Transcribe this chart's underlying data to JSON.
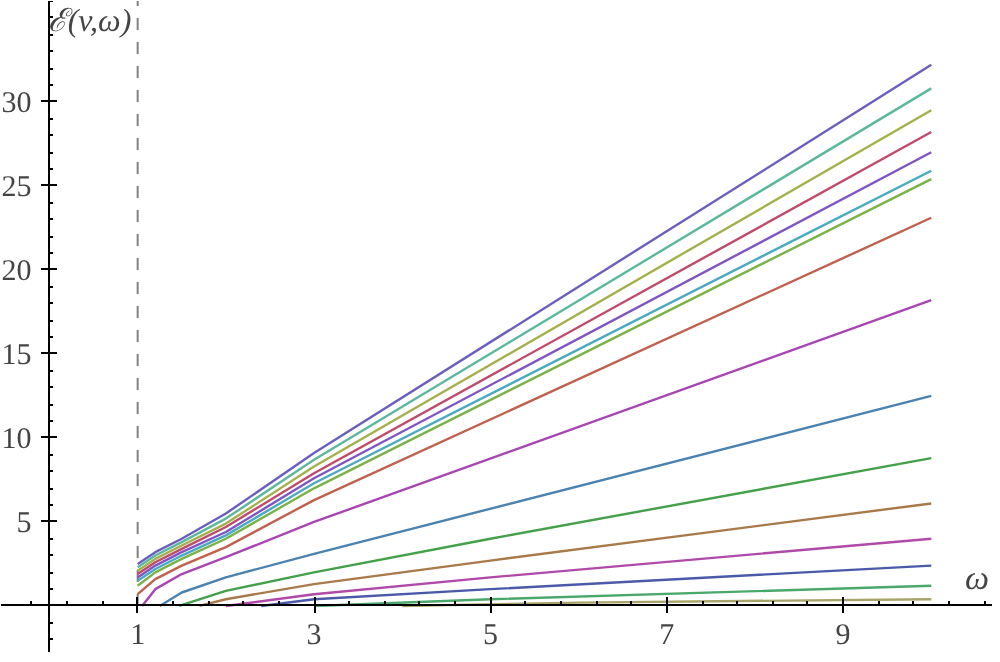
{
  "chart_data": {
    "type": "line",
    "xlabel": "ω",
    "ylabel": "ℰ(v,ω)",
    "xlim": [
      -0.55,
      10.7
    ],
    "ylim": [
      -2.8,
      36
    ],
    "xticks": [
      1,
      3,
      5,
      7,
      9
    ],
    "yticks": [
      5,
      10,
      15,
      20,
      25,
      30
    ],
    "grid": false,
    "marker": "none",
    "line_style": "solid",
    "ref_lines": [
      {
        "axis": "x",
        "value": 1,
        "color": "#808080",
        "line_style": "dashed"
      }
    ],
    "series": [
      {
        "color": "#6a5fbf",
        "x": [
          1,
          1.2,
          1.5,
          2,
          3,
          10
        ],
        "values": [
          2.5,
          3.2,
          4.0,
          5.5,
          9.1,
          32.2
        ]
      },
      {
        "color": "#5cb89c",
        "x": [
          1,
          1.2,
          1.5,
          2,
          3,
          10
        ],
        "values": [
          2.3,
          3.0,
          3.8,
          5.2,
          8.7,
          30.8
        ]
      },
      {
        "color": "#a3b04c",
        "x": [
          1,
          1.2,
          1.5,
          2,
          3,
          10
        ],
        "values": [
          2.1,
          2.8,
          3.6,
          4.9,
          8.3,
          29.5
        ]
      },
      {
        "color": "#c04a6a",
        "x": [
          1,
          1.2,
          1.5,
          2,
          3,
          10
        ],
        "values": [
          1.9,
          2.6,
          3.4,
          4.7,
          7.9,
          28.2
        ]
      },
      {
        "color": "#7f55c4",
        "x": [
          1,
          1.2,
          1.5,
          2,
          3,
          10
        ],
        "values": [
          1.7,
          2.4,
          3.2,
          4.4,
          7.6,
          27.0
        ]
      },
      {
        "color": "#4aaabf",
        "x": [
          1,
          1.2,
          1.5,
          2,
          3,
          10
        ],
        "values": [
          1.5,
          2.2,
          3.0,
          4.2,
          7.3,
          25.9
        ]
      },
      {
        "color": "#7ab247",
        "x": [
          1,
          1.2,
          1.5,
          2,
          3,
          10
        ],
        "values": [
          1.2,
          2.0,
          2.8,
          4.0,
          7.0,
          25.4
        ]
      },
      {
        "color": "#c0604e",
        "x": [
          1,
          1.2,
          1.5,
          2,
          3,
          10
        ],
        "values": [
          0.7,
          1.6,
          2.4,
          3.5,
          6.3,
          23.1
        ]
      },
      {
        "color": "#a845b3",
        "x": [
          1.05,
          1.2,
          1.5,
          2,
          3,
          10
        ],
        "values": [
          0,
          1.0,
          1.9,
          2.9,
          5.0,
          18.2
        ]
      },
      {
        "color": "#4a82b0",
        "x": [
          1.25,
          1.5,
          2,
          3,
          10
        ],
        "values": [
          0,
          0.8,
          1.7,
          3.1,
          12.5
        ]
      },
      {
        "color": "#44a04a",
        "x": [
          1.47,
          2,
          3,
          5,
          10
        ],
        "values": [
          0,
          0.9,
          2.0,
          4.0,
          8.8
        ]
      },
      {
        "color": "#a87a4a",
        "x": [
          1.7,
          2,
          3,
          5,
          10
        ],
        "values": [
          0,
          0.4,
          1.3,
          2.7,
          6.1
        ]
      },
      {
        "color": "#b04aa8",
        "x": [
          2,
          3,
          5,
          10
        ],
        "values": [
          0,
          0.7,
          1.7,
          4.0
        ]
      },
      {
        "color": "#4a5aa8",
        "x": [
          2.4,
          3,
          5,
          10
        ],
        "values": [
          0,
          0.4,
          1.0,
          2.4
        ]
      },
      {
        "color": "#4aa86a",
        "x": [
          3,
          5,
          10
        ],
        "values": [
          0,
          0.4,
          1.2
        ]
      },
      {
        "color": "#a8a46a",
        "x": [
          4,
          6,
          10
        ],
        "values": [
          0,
          0.2,
          0.4
        ]
      }
    ]
  }
}
